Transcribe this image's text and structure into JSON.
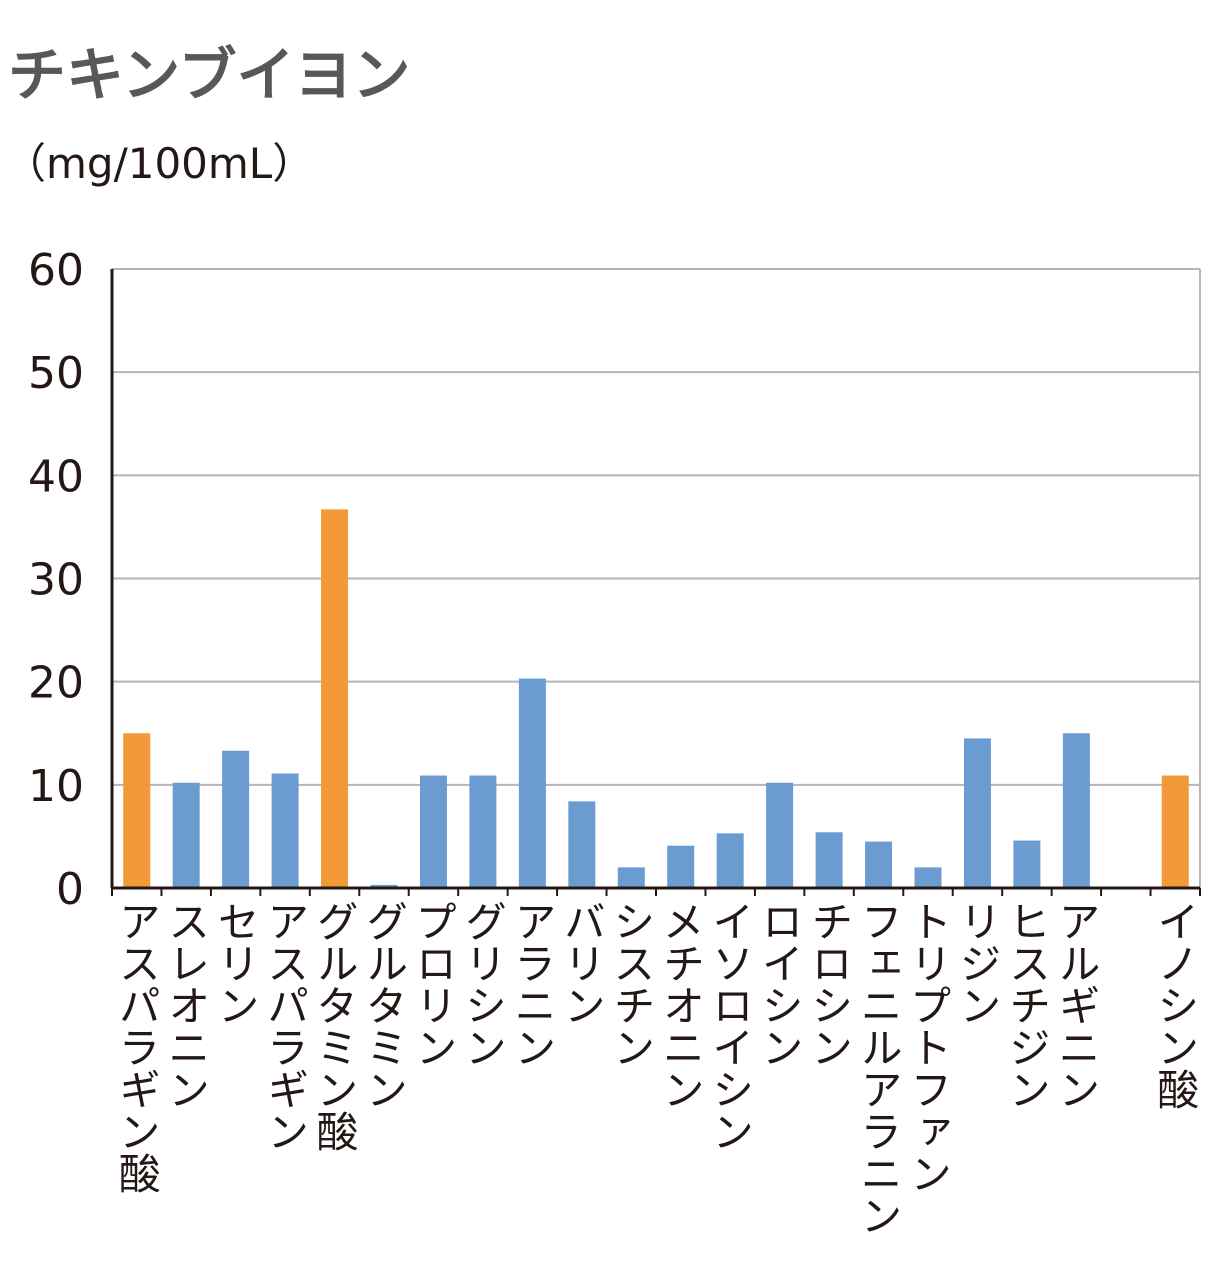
{
  "chart_data": {
    "type": "bar",
    "title": "チキンブイヨン",
    "subtitle": "（mg/100mL）",
    "categories": [
      "アスパラギン酸",
      "スレオニン",
      "セリン",
      "アスパラギン",
      "グルタミン酸",
      "グルタミン",
      "プロリン",
      "グリシン",
      "アラニン",
      "バリン",
      "シスチン",
      "メチオニン",
      "イソロイシン",
      "ロイシン",
      "チロシン",
      "フェニルアラニン",
      "トリプトファン",
      "リジン",
      "ヒスチジン",
      "アルギニン",
      null,
      "イノシン酸"
    ],
    "values": [
      15.0,
      10.2,
      13.3,
      11.1,
      36.7,
      0.3,
      10.9,
      10.9,
      20.3,
      8.4,
      2.0,
      4.1,
      5.3,
      10.2,
      5.4,
      4.5,
      2.0,
      14.5,
      4.6,
      15.0,
      null,
      10.9
    ],
    "colors": [
      "#f29a38",
      "#6a9cd2",
      "#6a9cd2",
      "#6a9cd2",
      "#f29a38",
      "#6a9cd2",
      "#6a9cd2",
      "#6a9cd2",
      "#6a9cd2",
      "#6a9cd2",
      "#6a9cd2",
      "#6a9cd2",
      "#6a9cd2",
      "#6a9cd2",
      "#6a9cd2",
      "#6a9cd2",
      "#6a9cd2",
      "#6a9cd2",
      "#6a9cd2",
      "#6a9cd2",
      null,
      "#f29a38"
    ],
    "ylim": [
      0,
      60
    ],
    "yticks": [
      0,
      10,
      20,
      30,
      40,
      50,
      60
    ],
    "grid": true
  }
}
